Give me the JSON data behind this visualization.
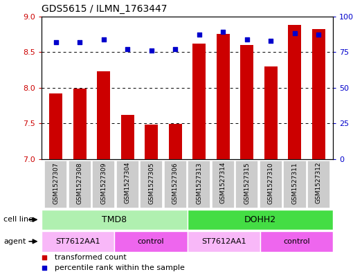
{
  "title": "GDS5615 / ILMN_1763447",
  "samples": [
    "GSM1527307",
    "GSM1527308",
    "GSM1527309",
    "GSM1527304",
    "GSM1527305",
    "GSM1527306",
    "GSM1527313",
    "GSM1527314",
    "GSM1527315",
    "GSM1527310",
    "GSM1527311",
    "GSM1527312"
  ],
  "bar_values": [
    7.92,
    7.99,
    8.23,
    7.62,
    7.48,
    7.49,
    8.62,
    8.75,
    8.6,
    8.3,
    8.88,
    8.82
  ],
  "dot_values": [
    82,
    82,
    84,
    77,
    76,
    77,
    87,
    89,
    84,
    83,
    88,
    87
  ],
  "ylim_left": [
    7.0,
    9.0
  ],
  "ylim_right": [
    0,
    100
  ],
  "yticks_left": [
    7.0,
    7.5,
    8.0,
    8.5,
    9.0
  ],
  "yticks_right": [
    0,
    25,
    50,
    75,
    100
  ],
  "bar_color": "#cc0000",
  "dot_color": "#0000cc",
  "cell_line_groups": [
    {
      "label": "TMD8",
      "start": 0,
      "end": 6,
      "color": "#b0f0b0"
    },
    {
      "label": "DOHH2",
      "start": 6,
      "end": 12,
      "color": "#44dd44"
    }
  ],
  "agent_groups": [
    {
      "label": "ST7612AA1",
      "start": 0,
      "end": 3,
      "color": "#f8b8f8"
    },
    {
      "label": "control",
      "start": 3,
      "end": 6,
      "color": "#ee66ee"
    },
    {
      "label": "ST7612AA1",
      "start": 6,
      "end": 9,
      "color": "#f8b8f8"
    },
    {
      "label": "control",
      "start": 9,
      "end": 12,
      "color": "#ee66ee"
    }
  ],
  "legend_items": [
    {
      "label": "transformed count",
      "color": "#cc0000"
    },
    {
      "label": "percentile rank within the sample",
      "color": "#0000cc"
    }
  ],
  "cell_line_label": "cell line",
  "agent_label": "agent",
  "grid_dotted_values": [
    7.5,
    8.0,
    8.5
  ],
  "bar_width": 0.55,
  "sample_box_color": "#cccccc",
  "sample_box_edge": "#ffffff",
  "fig_bg": "#ffffff"
}
